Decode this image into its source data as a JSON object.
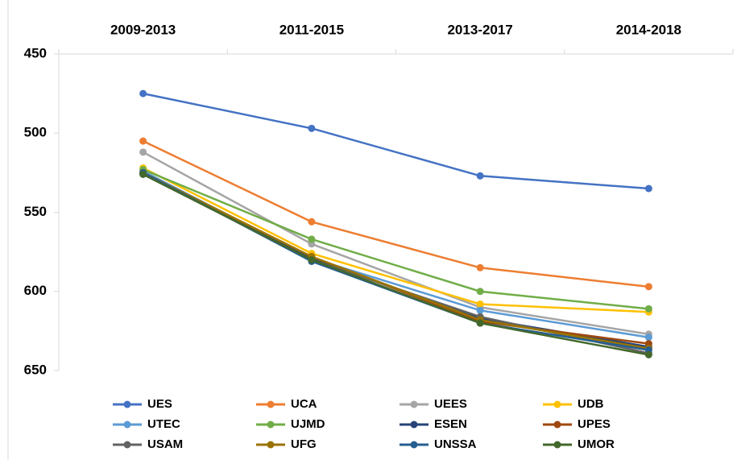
{
  "chart_data": {
    "type": "line",
    "categories": [
      "2009-2013",
      "2011-2015",
      "2013-2017",
      "2014-2018"
    ],
    "ylim": [
      450,
      650
    ],
    "yticks": [
      450,
      500,
      550,
      600,
      650
    ],
    "y_inverted": true,
    "series": [
      {
        "name": "UES",
        "color": "#4472c4",
        "values": [
          475,
          497,
          527,
          535
        ]
      },
      {
        "name": "UCA",
        "color": "#ed7d31",
        "values": [
          505,
          556,
          585,
          597
        ]
      },
      {
        "name": "UEES",
        "color": "#a5a5a5",
        "values": [
          512,
          570,
          610,
          627
        ]
      },
      {
        "name": "UDB",
        "color": "#ffc000",
        "values": [
          522,
          576,
          608,
          613
        ]
      },
      {
        "name": "UTEC",
        "color": "#5b9bd5",
        "values": [
          524,
          579,
          612,
          629
        ]
      },
      {
        "name": "UJMD",
        "color": "#70ad47",
        "values": [
          523,
          567,
          600,
          611
        ]
      },
      {
        "name": "ESEN",
        "color": "#264478",
        "values": [
          525,
          579,
          617,
          635
        ]
      },
      {
        "name": "UPES",
        "color": "#9e480e",
        "values": [
          525,
          578,
          619,
          633
        ]
      },
      {
        "name": "USAM",
        "color": "#636363",
        "values": [
          526,
          580,
          616,
          639
        ]
      },
      {
        "name": "UFG",
        "color": "#997300",
        "values": [
          525,
          578,
          618,
          636
        ]
      },
      {
        "name": "UNSSA",
        "color": "#255e91",
        "values": [
          525,
          581,
          620,
          637
        ]
      },
      {
        "name": "UMOR",
        "color": "#43682b",
        "values": [
          526,
          580,
          620,
          640
        ]
      }
    ]
  }
}
